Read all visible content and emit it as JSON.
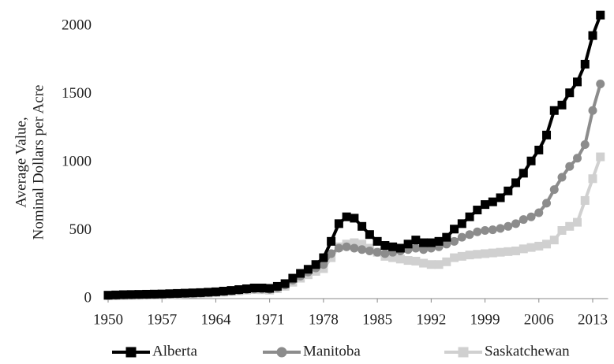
{
  "chart_data": {
    "type": "line",
    "ylabel": [
      "Average Value,",
      "Nominal Dollars per Acre"
    ],
    "x": [
      1950,
      1951,
      1952,
      1953,
      1954,
      1955,
      1956,
      1957,
      1958,
      1959,
      1960,
      1961,
      1962,
      1963,
      1964,
      1965,
      1966,
      1967,
      1968,
      1969,
      1970,
      1971,
      1972,
      1973,
      1974,
      1975,
      1976,
      1977,
      1978,
      1979,
      1980,
      1981,
      1982,
      1983,
      1984,
      1985,
      1986,
      1987,
      1988,
      1989,
      1990,
      1991,
      1992,
      1993,
      1994,
      1995,
      1996,
      1997,
      1998,
      1999,
      2000,
      2001,
      2002,
      2003,
      2004,
      2005,
      2006,
      2007,
      2008,
      2009,
      2010,
      2011,
      2012,
      2013,
      2014
    ],
    "series": [
      {
        "name": "Alberta",
        "color": "#000000",
        "marker": "square",
        "values": [
          25,
          27,
          29,
          30,
          31,
          32,
          33,
          34,
          36,
          38,
          40,
          42,
          44,
          47,
          50,
          55,
          60,
          66,
          72,
          78,
          78,
          75,
          90,
          110,
          150,
          185,
          215,
          250,
          300,
          420,
          550,
          600,
          590,
          530,
          470,
          420,
          390,
          380,
          370,
          400,
          430,
          410,
          410,
          420,
          450,
          510,
          550,
          600,
          650,
          690,
          710,
          740,
          790,
          850,
          920,
          1010,
          1090,
          1200,
          1380,
          1420,
          1510,
          1590,
          1720,
          1930,
          2080
        ]
      },
      {
        "name": "Manitoba",
        "color": "#8c8c8c",
        "marker": "circle",
        "values": [
          22,
          24,
          26,
          27,
          28,
          29,
          30,
          31,
          33,
          35,
          37,
          39,
          41,
          44,
          47,
          51,
          56,
          61,
          66,
          70,
          70,
          68,
          80,
          100,
          135,
          165,
          195,
          225,
          250,
          330,
          370,
          380,
          370,
          360,
          350,
          340,
          330,
          340,
          350,
          360,
          370,
          360,
          370,
          380,
          400,
          420,
          450,
          470,
          490,
          500,
          505,
          515,
          530,
          550,
          580,
          600,
          630,
          700,
          800,
          890,
          970,
          1030,
          1130,
          1380,
          1575
        ]
      },
      {
        "name": "Saskatchewan",
        "color": "#d0d0d0",
        "marker": "square",
        "values": [
          20,
          21,
          22,
          23,
          24,
          25,
          26,
          27,
          29,
          31,
          33,
          35,
          37,
          40,
          43,
          47,
          52,
          57,
          62,
          66,
          65,
          62,
          72,
          90,
          120,
          150,
          175,
          200,
          220,
          300,
          380,
          400,
          410,
          400,
          370,
          340,
          310,
          300,
          290,
          280,
          275,
          260,
          250,
          250,
          270,
          300,
          310,
          320,
          325,
          330,
          335,
          340,
          345,
          350,
          365,
          375,
          385,
          400,
          430,
          500,
          530,
          560,
          720,
          880,
          1040
        ]
      }
    ],
    "xlim": [
      1950,
      2015
    ],
    "xticks": [
      1950,
      1957,
      1964,
      1971,
      1978,
      1985,
      1992,
      1999,
      2006,
      2013
    ],
    "ylim": [
      0,
      2100
    ],
    "yticks": [
      0,
      500,
      1000,
      1500,
      2000
    ],
    "grid": false,
    "legend": "bottom"
  }
}
